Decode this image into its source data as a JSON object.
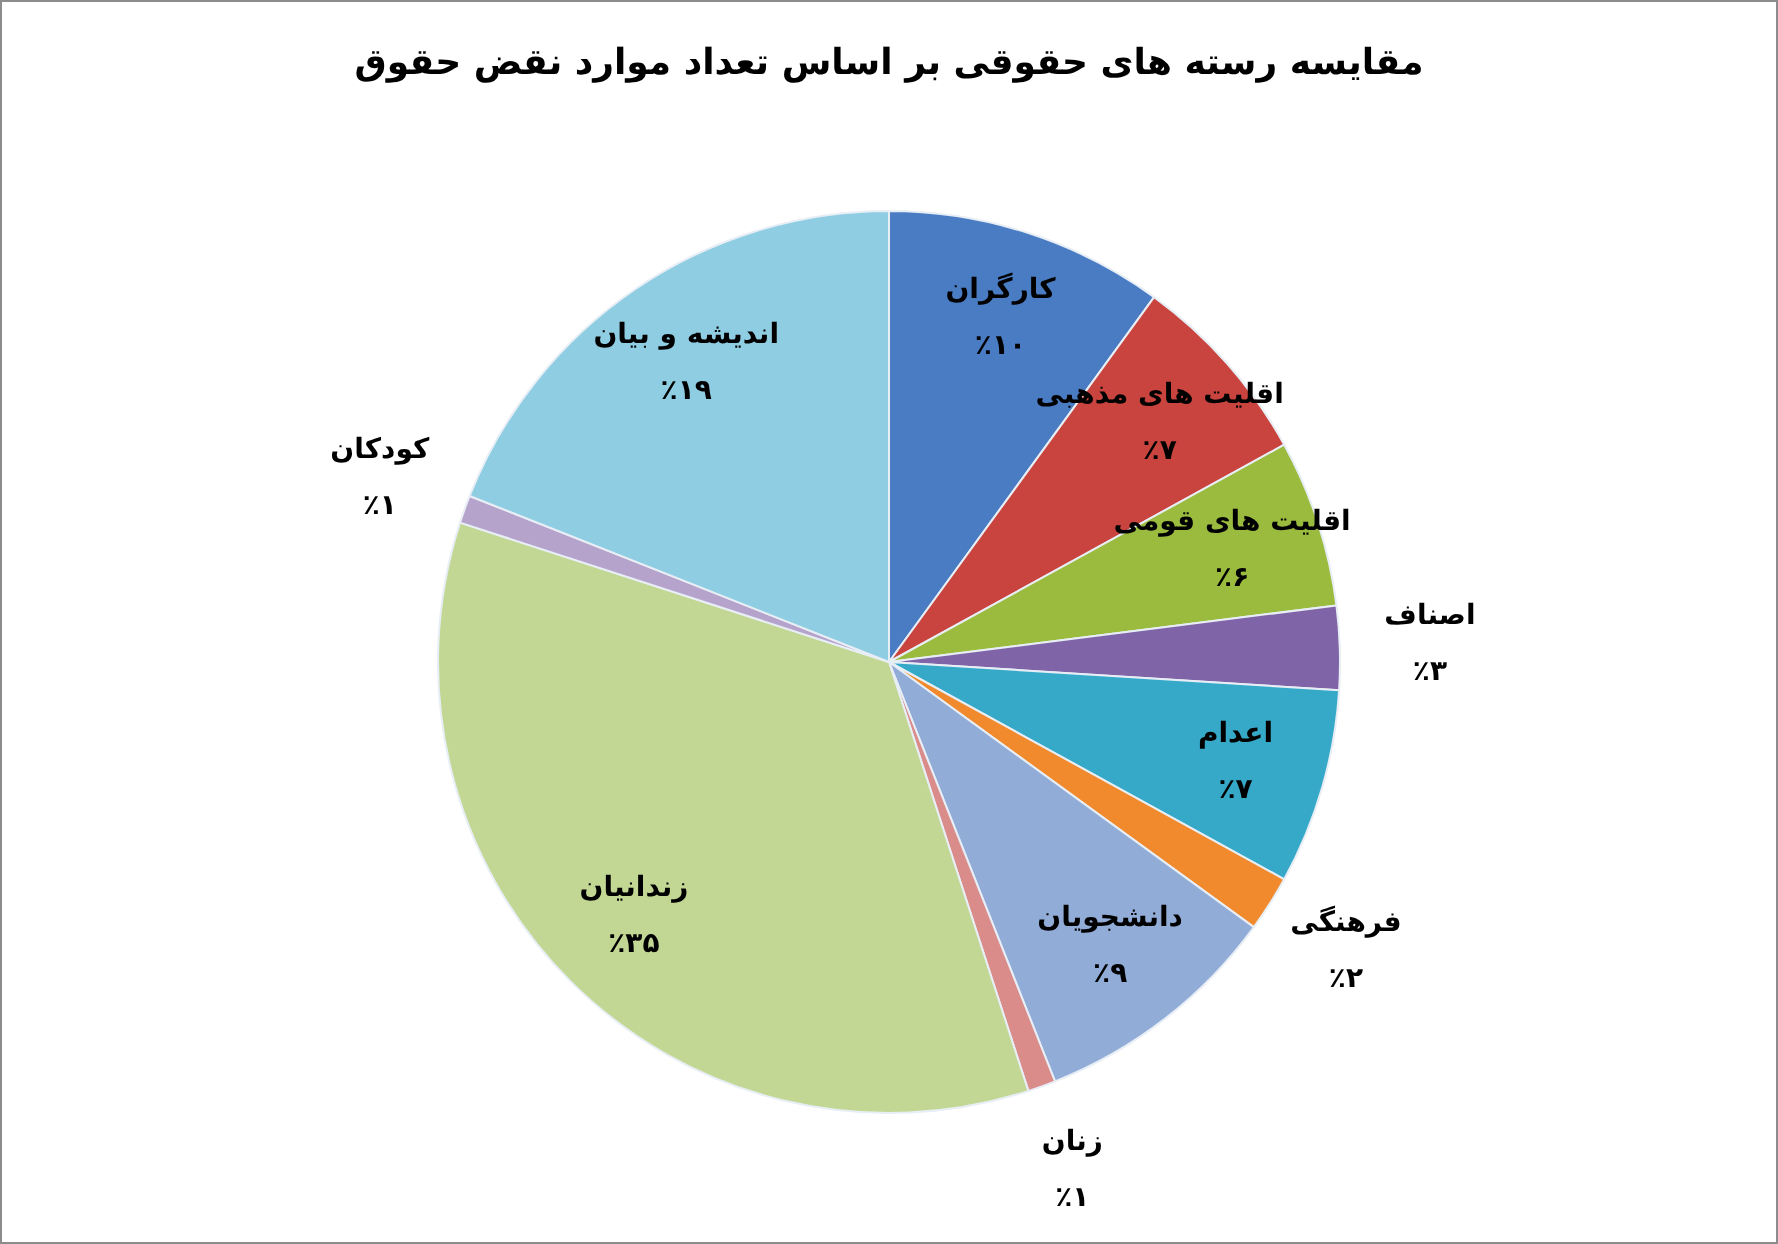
{
  "chart_data": {
    "type": "pie",
    "title": "مقایسه رسته های حقوقی بر اساس تعداد موارد نقض حقوق",
    "categories": [
      "کارگران",
      "اقلیت های مذهبی",
      "اقلیت های قومی",
      "اصناف",
      "اعدام",
      "فرهنگی",
      "دانشجویان",
      "زنان",
      "زندانیان",
      "کودکان",
      "اندیشه و بیان"
    ],
    "values": [
      10,
      7,
      6,
      3,
      7,
      2,
      9,
      1,
      35,
      1,
      19
    ],
    "colors": [
      "#4a7cc4",
      "#c9443e",
      "#9bbb3f",
      "#8064a8",
      "#36a9c9",
      "#f08a2c",
      "#92acd8",
      "#d98c8a",
      "#c2d794",
      "#b5a3cc",
      "#8fcde2"
    ],
    "value_labels": [
      "٪۱۰",
      "٪۷",
      "٪۶",
      "٪۳",
      "٪۷",
      "٪۲",
      "٪۹",
      "٪۱",
      "٪۳۵",
      "٪۱",
      "٪۱۹"
    ],
    "legend": false
  }
}
